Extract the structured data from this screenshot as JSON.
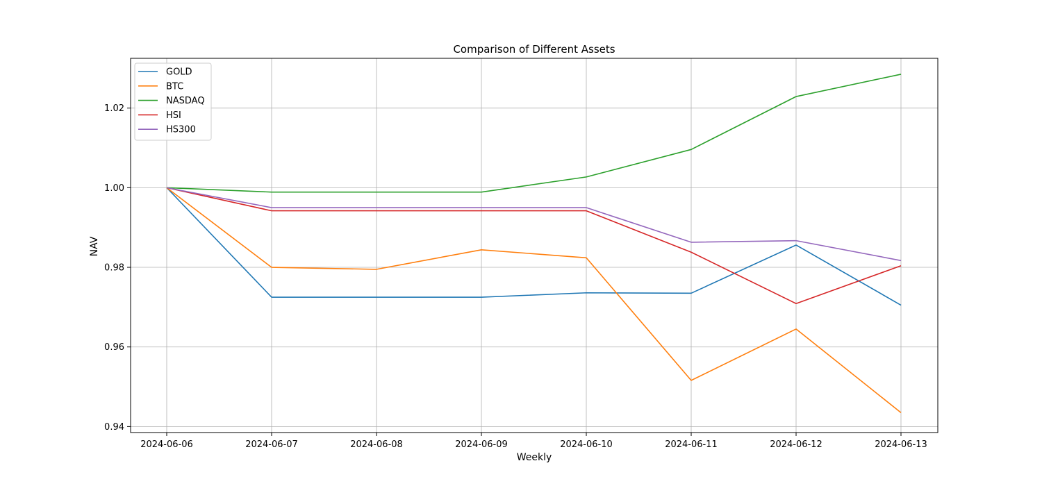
{
  "chart_data": {
    "type": "line",
    "title": "Comparison of Different Assets",
    "xlabel": "Weekly",
    "ylabel": "NAV",
    "categories": [
      "2024-06-06",
      "2024-06-07",
      "2024-06-08",
      "2024-06-09",
      "2024-06-10",
      "2024-06-11",
      "2024-06-12",
      "2024-06-13"
    ],
    "ylim": [
      0.9385,
      1.0325
    ],
    "yticks": [
      0.94,
      0.96,
      0.98,
      1.0,
      1.02
    ],
    "ytick_labels": [
      "0.94",
      "0.96",
      "0.98",
      "1.00",
      "1.02"
    ],
    "grid": true,
    "legend_position": "top-left",
    "series": [
      {
        "name": "GOLD",
        "color": "#1f77b4",
        "values": [
          1.0,
          0.9725,
          0.9725,
          0.9725,
          0.9736,
          0.9735,
          0.9856,
          0.9705
        ]
      },
      {
        "name": "BTC",
        "color": "#ff7f0e",
        "values": [
          1.0,
          0.98,
          0.9795,
          0.9844,
          0.9824,
          0.9516,
          0.9645,
          0.9435
        ]
      },
      {
        "name": "NASDAQ",
        "color": "#2ca02c",
        "values": [
          1.0,
          0.9989,
          0.9989,
          0.9989,
          1.0027,
          1.0096,
          1.0229,
          1.0285
        ]
      },
      {
        "name": "HSI",
        "color": "#d62728",
        "values": [
          1.0,
          0.9942,
          0.9942,
          0.9942,
          0.9942,
          0.9838,
          0.9709,
          0.9804
        ]
      },
      {
        "name": "HS300",
        "color": "#9467bd",
        "values": [
          1.0,
          0.995,
          0.995,
          0.995,
          0.995,
          0.9863,
          0.9867,
          0.9817
        ]
      }
    ]
  }
}
